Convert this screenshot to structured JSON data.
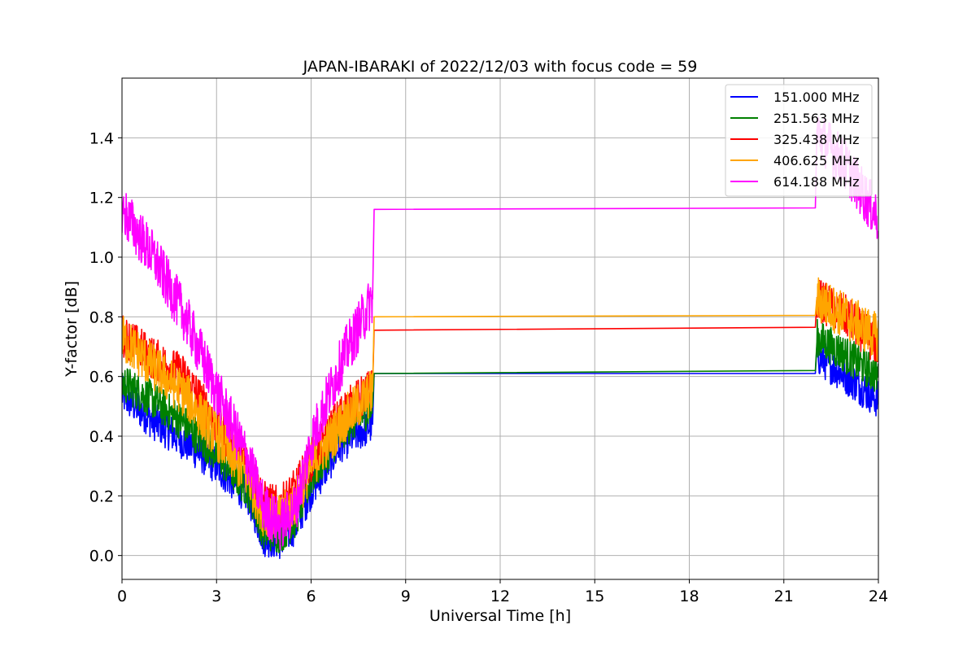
{
  "chart_data": {
    "type": "line",
    "title": "JAPAN-IBARAKI of 2022/12/03 with focus code = 59",
    "xlabel": "Universal Time [h]",
    "ylabel": "Y-factor [dB]",
    "xlim": [
      0,
      24
    ],
    "ylim": [
      -0.08,
      1.6
    ],
    "xticks": [
      0,
      3,
      6,
      9,
      12,
      15,
      18,
      21,
      24
    ],
    "yticks": [
      0.0,
      0.2,
      0.4,
      0.6,
      0.8,
      1.0,
      1.2,
      1.4
    ],
    "ytick_labels": [
      "0.0",
      "0.2",
      "0.4",
      "0.6",
      "0.8",
      "1.0",
      "1.2",
      "1.4"
    ],
    "grid": true,
    "legend_position": "top-right",
    "series": [
      {
        "name": "151.000 MHz",
        "color": "#0000ff",
        "noise": 0.08,
        "x": [
          0,
          1,
          2,
          3,
          4,
          4.5,
          5,
          5.5,
          6,
          7,
          7.95,
          8.0,
          22.0,
          22.05,
          23,
          24
        ],
        "y": [
          0.54,
          0.45,
          0.38,
          0.3,
          0.2,
          0.06,
          0.05,
          0.1,
          0.22,
          0.38,
          0.44,
          0.61,
          0.61,
          0.67,
          0.6,
          0.52
        ]
      },
      {
        "name": "251.563 MHz",
        "color": "#008000",
        "noise": 0.08,
        "x": [
          0,
          1,
          2,
          3,
          4,
          4.5,
          5,
          5.5,
          6,
          7,
          7.95,
          8.0,
          22.0,
          22.05,
          23,
          24
        ],
        "y": [
          0.58,
          0.52,
          0.44,
          0.34,
          0.22,
          0.08,
          0.07,
          0.12,
          0.26,
          0.42,
          0.5,
          0.61,
          0.62,
          0.73,
          0.67,
          0.6
        ]
      },
      {
        "name": "325.438 MHz",
        "color": "#ff0000",
        "noise": 0.09,
        "x": [
          0,
          1,
          2,
          3,
          4,
          4.5,
          5,
          5.5,
          6,
          7,
          7.95,
          8.0,
          22.0,
          22.05,
          23,
          24
        ],
        "y": [
          0.74,
          0.66,
          0.6,
          0.44,
          0.3,
          0.18,
          0.16,
          0.22,
          0.32,
          0.48,
          0.56,
          0.755,
          0.765,
          0.86,
          0.8,
          0.7
        ]
      },
      {
        "name": "406.625 MHz",
        "color": "#ffa500",
        "noise": 0.1,
        "x": [
          0,
          1,
          2,
          3,
          4,
          4.5,
          5,
          5.5,
          6,
          7,
          7.95,
          8.0,
          22.0,
          22.05,
          23,
          24
        ],
        "y": [
          0.73,
          0.63,
          0.54,
          0.4,
          0.26,
          0.14,
          0.12,
          0.18,
          0.3,
          0.45,
          0.55,
          0.8,
          0.805,
          0.86,
          0.8,
          0.73
        ]
      },
      {
        "name": "614.188 MHz",
        "color": "#ff00ff",
        "noise": 0.11,
        "x": [
          0,
          1,
          2,
          3,
          4,
          4.5,
          5,
          5.5,
          6,
          7,
          7.95,
          8.0,
          22.0,
          22.05,
          23,
          24
        ],
        "y": [
          1.16,
          1.0,
          0.8,
          0.55,
          0.32,
          0.16,
          0.1,
          0.16,
          0.38,
          0.66,
          0.86,
          1.16,
          1.165,
          1.42,
          1.3,
          1.13
        ]
      }
    ]
  }
}
